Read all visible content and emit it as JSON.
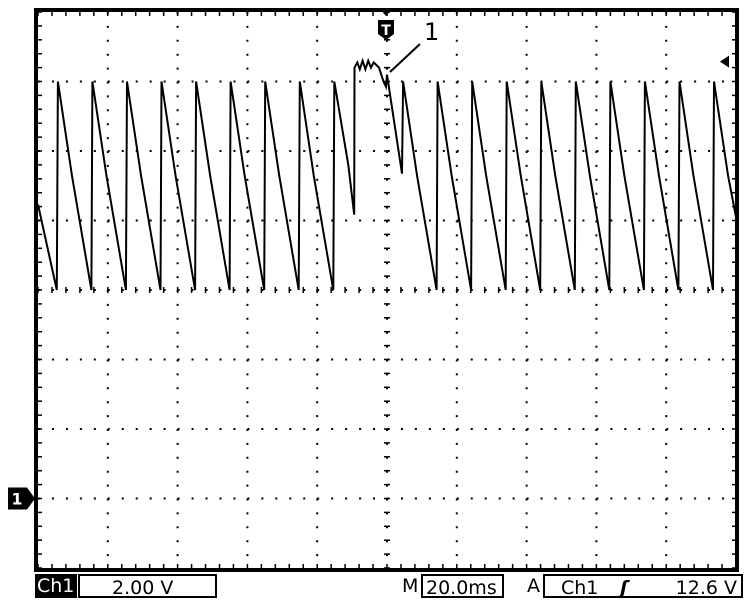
{
  "colors": {
    "trace": "#000000",
    "background": "#ffffff",
    "grid": "#000000"
  },
  "icons": {
    "ground_marker": "channel-1-ground-marker",
    "trigger_position": "trigger-position-T-marker",
    "trigger_level": "trigger-level-arrow"
  },
  "markers": {
    "channel_marker_label": "1",
    "trigger_marker_label": "T",
    "annotation_label": "1"
  },
  "status_bar": {
    "channel": "Ch1",
    "volts_per_div": "2.00 V",
    "timebase_prefix": "M",
    "timebase": "20.0ms",
    "trigger_mode_prefix": "A",
    "trigger_source": "Ch1",
    "trigger_slope_icon": "rising-edge",
    "trigger_slope_glyph": "ʃ",
    "trigger_level": "12.6 V"
  },
  "chart_data": {
    "type": "line",
    "title": "",
    "xlabel": "",
    "ylabel": "",
    "x_unit": "ms",
    "y_unit": "V",
    "xlim": [
      -100,
      100
    ],
    "ylim": [
      -2,
      14
    ],
    "divisions": {
      "horizontal": 10,
      "vertical": 8
    },
    "volts_per_div": 2.0,
    "ms_per_div": 20.0,
    "trigger_time_ms": 0,
    "trigger_level_v": 12.6,
    "grid": true,
    "series": [
      {
        "points": [
          [
            -100,
            8.46
          ],
          [
            -94.6,
            6.0
          ],
          [
            -94.3,
            12.0
          ],
          [
            -90.3,
            9.3
          ],
          [
            -84.7,
            6.0
          ],
          [
            -84.4,
            12.0
          ],
          [
            -80.4,
            9.3
          ],
          [
            -74.8,
            6.0
          ],
          [
            -74.5,
            12.0
          ],
          [
            -70.5,
            9.3
          ],
          [
            -64.9,
            6.0
          ],
          [
            -64.6,
            12.0
          ],
          [
            -60.6,
            9.3
          ],
          [
            -55.0,
            6.0
          ],
          [
            -54.7,
            12.0
          ],
          [
            -50.7,
            9.3
          ],
          [
            -45.1,
            6.0
          ],
          [
            -44.8,
            12.0
          ],
          [
            -40.8,
            9.3
          ],
          [
            -35.2,
            6.0
          ],
          [
            -34.9,
            12.0
          ],
          [
            -30.9,
            9.3
          ],
          [
            -25.3,
            6.0
          ],
          [
            -25.0,
            12.0
          ],
          [
            -21.0,
            9.3
          ],
          [
            -15.4,
            6.0
          ],
          [
            -15.1,
            12.0
          ],
          [
            -11.1,
            9.6
          ],
          [
            -9.4,
            8.17
          ],
          [
            -9.3,
            12.4
          ],
          [
            -8.5,
            12.55
          ],
          [
            -7.8,
            12.35
          ],
          [
            -7.0,
            12.6
          ],
          [
            -6.2,
            12.35
          ],
          [
            -5.4,
            12.6
          ],
          [
            -4.6,
            12.4
          ],
          [
            -3.8,
            12.55
          ],
          [
            -2.3,
            12.4
          ],
          [
            -1.0,
            12.0
          ],
          [
            -0.3,
            11.85
          ],
          [
            0,
            12.2
          ],
          [
            4.3,
            9.35
          ],
          [
            4.6,
            12.0
          ],
          [
            8.6,
            9.3
          ],
          [
            14.2,
            6.0
          ],
          [
            14.5,
            12.0
          ],
          [
            18.5,
            9.3
          ],
          [
            24.1,
            6.0
          ],
          [
            24.4,
            12.0
          ],
          [
            28.4,
            9.3
          ],
          [
            34.0,
            6.0
          ],
          [
            34.3,
            12.0
          ],
          [
            38.3,
            9.3
          ],
          [
            43.9,
            6.0
          ],
          [
            44.2,
            12.0
          ],
          [
            48.2,
            9.3
          ],
          [
            53.8,
            6.0
          ],
          [
            54.1,
            12.0
          ],
          [
            58.1,
            9.3
          ],
          [
            63.7,
            6.0
          ],
          [
            64.0,
            12.0
          ],
          [
            68.0,
            9.3
          ],
          [
            73.6,
            6.0
          ],
          [
            73.9,
            12.0
          ],
          [
            77.9,
            9.3
          ],
          [
            83.5,
            6.0
          ],
          [
            83.8,
            12.0
          ],
          [
            87.8,
            9.3
          ],
          [
            93.4,
            6.0
          ],
          [
            93.7,
            12.0
          ],
          [
            97.7,
            9.3
          ],
          [
            100,
            8.1
          ]
        ]
      }
    ]
  }
}
